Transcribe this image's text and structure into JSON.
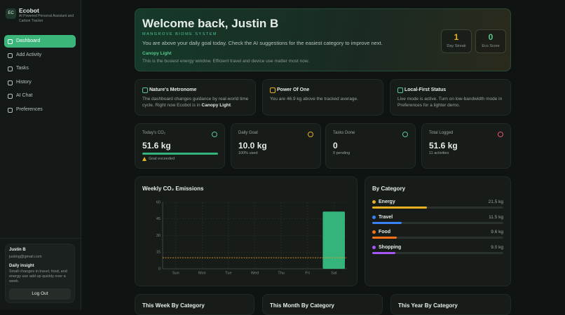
{
  "sidebar": {
    "logo": "EC",
    "app_name": "Ecobot",
    "tagline": "AI Powered Personal Assistant and Carbon Tracker",
    "nav": [
      "Dashboard",
      "Add Activity",
      "Tasks",
      "History",
      "AI Chat",
      "Preferences"
    ],
    "user": {
      "name": "Justin B",
      "email": "justing@gmail.com",
      "insight_title": "Daily insight",
      "insight_text": "Small changes in travel, food, and energy use add up quickly over a week.",
      "logout": "Log Out"
    }
  },
  "header": {
    "title": "Welcome back, Justin B",
    "biome": "MANGROVE BIOME SYSTEM",
    "summary": "You are above your daily goal today. Check the AI suggestions for the easiest category to improve next.",
    "phase": "Canopy Light",
    "phase_text": "This is the busiest energy window. Efficient travel and device use matter most now.",
    "badges": [
      {
        "value": "1",
        "label": "Day Streak"
      },
      {
        "value": "0",
        "label": "Eco Score"
      }
    ]
  },
  "info_cards": [
    {
      "title": "Nature's Metronome",
      "text": "The dashboard changes guidance by real-world time cycle. Right now Ecobot is in ",
      "bold": "Canopy Light",
      "end": "."
    },
    {
      "title": "Power Of One",
      "text": "You are 46.9 kg above the tracked average."
    },
    {
      "title": "Local-First Status",
      "text": "Live mode is active. Turn on low-bandwidth mode in Preferences for a lighter demo."
    }
  ],
  "stats": [
    {
      "label": "Today's CO₂",
      "value": "51.6 kg",
      "note": "Goal exceeded"
    },
    {
      "label": "Daily Goal",
      "value": "10.0 kg",
      "note": "100% used"
    },
    {
      "label": "Tasks Done",
      "value": "0",
      "note": "0 pending"
    },
    {
      "label": "Total Logged",
      "value": "51.6 kg",
      "note": "11 activities"
    }
  ],
  "chart_data": {
    "type": "bar",
    "title": "Weekly CO₂ Emissions",
    "categories": [
      "Sun",
      "Mon",
      "Tue",
      "Wed",
      "Thu",
      "Fri",
      "Sat"
    ],
    "values": [
      0,
      0,
      0,
      0,
      0,
      0,
      51.6
    ],
    "color": "#34b37a",
    "ylim": [
      0,
      60
    ],
    "yticks": [
      0,
      15,
      30,
      45,
      60
    ],
    "goal_line": 10,
    "grid": true
  },
  "by_category": {
    "title": "By Category",
    "categories": [
      "Energy",
      "Travel",
      "Food",
      "Shopping"
    ],
    "values": [
      21.5,
      11.5,
      9.6,
      9.0
    ],
    "value_labels": [
      "21.5 kg",
      "11.5 kg",
      "9.6 kg",
      "9.0 kg"
    ],
    "colors": [
      "#e8b020",
      "#3b82f6",
      "#f97316",
      "#a855f7"
    ]
  },
  "bottom_cards": [
    "This Week By Category",
    "This Month By Category",
    "This Year By Category"
  ]
}
